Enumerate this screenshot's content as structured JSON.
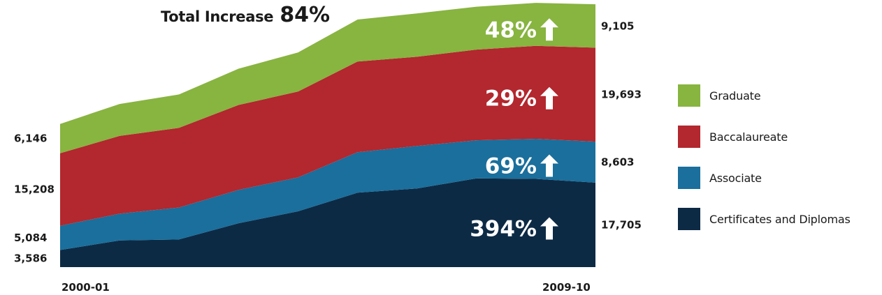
{
  "chart_data": {
    "type": "area",
    "stacked": true,
    "title_prefix": "Total Increase",
    "title_value": "84%",
    "x_start_label": "2000-01",
    "x_end_label": "2009-10",
    "series": [
      {
        "name": "Certificates and Diplomas",
        "color": "#0d2a45",
        "values": [
          3586,
          5600,
          5800,
          9200,
          11700,
          15600,
          16500,
          18600,
          18500,
          17705
        ],
        "start_label": "3,586",
        "end_label": "17,705",
        "change": "394%"
      },
      {
        "name": "Associate",
        "color": "#1a6f9c",
        "values": [
          5084,
          5600,
          6700,
          7000,
          7100,
          8500,
          8900,
          8000,
          8400,
          8603
        ],
        "start_label": "5,084",
        "end_label": "8,603",
        "change": "69%"
      },
      {
        "name": "Baccalaureate",
        "color": "#b3272e",
        "values": [
          15208,
          16300,
          16700,
          17800,
          18000,
          19000,
          18700,
          19000,
          19500,
          19693
        ],
        "start_label": "15,208",
        "end_label": "19,693",
        "change": "29%"
      },
      {
        "name": "Graduate",
        "color": "#88b440",
        "values": [
          6146,
          6700,
          7000,
          7600,
          8200,
          8800,
          9100,
          9000,
          9000,
          9105
        ],
        "start_label": "6,146",
        "end_label": "9,105",
        "change": "48%"
      }
    ],
    "ylim": [
      0,
      56000
    ],
    "legend_position": "right"
  }
}
